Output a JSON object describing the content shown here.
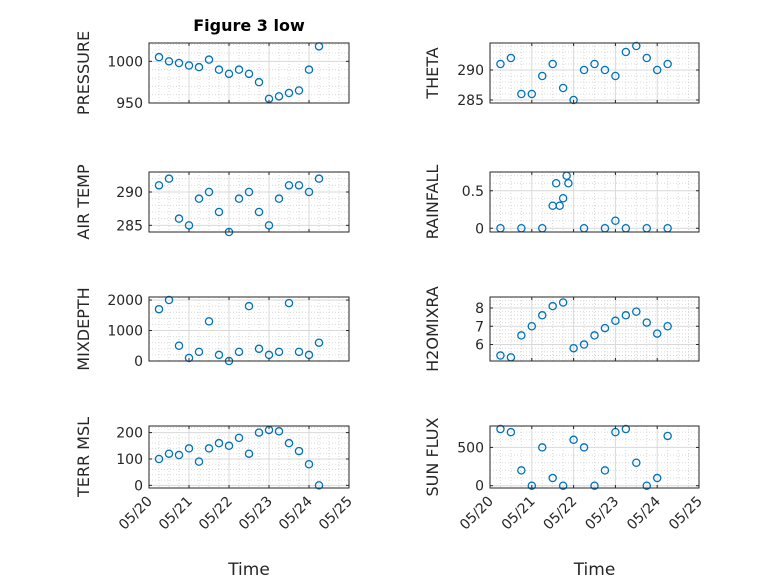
{
  "figure": {
    "title": "Figure 3 low",
    "xlabel": "Time",
    "date_ticks": [
      "05/20",
      "05/21",
      "05/22",
      "05/23",
      "05/24",
      "05/25"
    ],
    "marker_color": "#0072BD",
    "grid_color": "#d9d9d9"
  },
  "chart_data": [
    {
      "type": "scatter",
      "ylabel": "PRESSURE",
      "title": "Figure 3 low",
      "ylim": [
        950,
        1022
      ],
      "yticks": [
        950,
        1000
      ],
      "x": [
        "05/20 06:00",
        "05/20 12:00",
        "05/20 18:00",
        "05/21 00:00",
        "05/21 06:00",
        "05/21 12:00",
        "05/21 18:00",
        "05/22 00:00",
        "05/22 06:00",
        "05/22 12:00",
        "05/22 18:00",
        "05/23 00:00",
        "05/23 06:00",
        "05/23 12:00",
        "05/23 18:00",
        "05/24 00:00",
        "05/24 06:00"
      ],
      "y": [
        1005,
        1000,
        998,
        995,
        993,
        1002,
        990,
        985,
        990,
        985,
        975,
        955,
        958,
        962,
        965,
        990,
        1018
      ]
    },
    {
      "type": "scatter",
      "ylabel": "THETA",
      "ylim": [
        284.5,
        294.5
      ],
      "yticks": [
        285,
        290
      ],
      "x": [
        "05/20 06:00",
        "05/20 12:00",
        "05/20 18:00",
        "05/21 00:00",
        "05/21 06:00",
        "05/21 12:00",
        "05/21 18:00",
        "05/22 00:00",
        "05/22 06:00",
        "05/22 12:00",
        "05/22 18:00",
        "05/23 00:00",
        "05/23 06:00",
        "05/23 12:00",
        "05/23 18:00",
        "05/24 00:00",
        "05/24 06:00"
      ],
      "y": [
        291,
        292,
        286,
        286,
        289,
        291,
        287,
        285,
        290,
        291,
        290,
        289,
        293,
        294,
        292,
        290,
        291
      ]
    },
    {
      "type": "scatter",
      "ylabel": "AIR_TEMP",
      "ylim": [
        284,
        293
      ],
      "yticks": [
        285,
        290
      ],
      "x": [
        "05/20 06:00",
        "05/20 12:00",
        "05/20 18:00",
        "05/21 00:00",
        "05/21 06:00",
        "05/21 12:00",
        "05/21 18:00",
        "05/22 00:00",
        "05/22 06:00",
        "05/22 12:00",
        "05/22 18:00",
        "05/23 00:00",
        "05/23 06:00",
        "05/23 12:00",
        "05/23 18:00",
        "05/24 00:00",
        "05/24 06:00"
      ],
      "y": [
        291,
        292,
        286,
        285,
        289,
        290,
        287,
        284,
        289,
        290,
        287,
        285,
        289,
        291,
        291,
        290,
        292
      ]
    },
    {
      "type": "scatter",
      "ylabel": "RAINFALL",
      "ylim": [
        -0.05,
        0.75
      ],
      "yticks": [
        0,
        0.5
      ],
      "x": [
        "05/20 06:00",
        "05/20 18:00",
        "05/21 06:00",
        "05/21 12:00",
        "05/21 14:00",
        "05/21 16:00",
        "05/21 18:00",
        "05/21 20:00",
        "05/21 21:00",
        "05/22 06:00",
        "05/22 18:00",
        "05/23 00:00",
        "05/23 06:00",
        "05/23 18:00",
        "05/24 06:00"
      ],
      "y": [
        0,
        0,
        0,
        0.3,
        0.6,
        0.3,
        0.4,
        0.7,
        0.6,
        0,
        0,
        0.1,
        0,
        0,
        0
      ]
    },
    {
      "type": "scatter",
      "ylabel": "MIXDEPTH",
      "ylim": [
        0,
        2100
      ],
      "yticks": [
        0,
        1000,
        2000
      ],
      "x": [
        "05/20 06:00",
        "05/20 12:00",
        "05/20 18:00",
        "05/21 00:00",
        "05/21 06:00",
        "05/21 12:00",
        "05/21 18:00",
        "05/22 00:00",
        "05/22 06:00",
        "05/22 12:00",
        "05/22 18:00",
        "05/23 00:00",
        "05/23 06:00",
        "05/23 12:00",
        "05/23 18:00",
        "05/24 00:00",
        "05/24 06:00"
      ],
      "y": [
        1700,
        2000,
        500,
        100,
        300,
        1300,
        200,
        0,
        300,
        1800,
        400,
        200,
        300,
        1900,
        300,
        200,
        600
      ]
    },
    {
      "type": "scatter",
      "ylabel": "H2OMIXRA",
      "ylim": [
        5.1,
        8.6
      ],
      "yticks": [
        6,
        7,
        8
      ],
      "x": [
        "05/20 06:00",
        "05/20 12:00",
        "05/20 18:00",
        "05/21 00:00",
        "05/21 06:00",
        "05/21 12:00",
        "05/21 18:00",
        "05/22 00:00",
        "05/22 06:00",
        "05/22 12:00",
        "05/22 18:00",
        "05/23 00:00",
        "05/23 06:00",
        "05/23 12:00",
        "05/23 18:00",
        "05/24 00:00",
        "05/24 06:00"
      ],
      "y": [
        5.4,
        5.3,
        6.5,
        7.0,
        7.6,
        8.1,
        8.3,
        5.8,
        6.0,
        6.5,
        6.9,
        7.3,
        7.6,
        7.8,
        7.2,
        6.6,
        7.0
      ]
    },
    {
      "type": "scatter",
      "ylabel": "TERR_MSL",
      "ylim": [
        -10,
        225
      ],
      "yticks": [
        0,
        100,
        200
      ],
      "x": [
        "05/20 06:00",
        "05/20 12:00",
        "05/20 18:00",
        "05/21 00:00",
        "05/21 06:00",
        "05/21 12:00",
        "05/21 18:00",
        "05/22 00:00",
        "05/22 06:00",
        "05/22 12:00",
        "05/22 18:00",
        "05/23 00:00",
        "05/23 06:00",
        "05/23 12:00",
        "05/23 18:00",
        "05/24 00:00",
        "05/24 06:00"
      ],
      "y": [
        100,
        120,
        115,
        140,
        90,
        140,
        160,
        150,
        180,
        120,
        200,
        210,
        205,
        160,
        130,
        80,
        0
      ]
    },
    {
      "type": "scatter",
      "ylabel": "SUN_FLUX",
      "ylim": [
        -30,
        780
      ],
      "yticks": [
        0,
        500
      ],
      "x": [
        "05/20 06:00",
        "05/20 12:00",
        "05/20 18:00",
        "05/21 00:00",
        "05/21 06:00",
        "05/21 12:00",
        "05/21 18:00",
        "05/22 00:00",
        "05/22 06:00",
        "05/22 12:00",
        "05/22 18:00",
        "05/23 00:00",
        "05/23 06:00",
        "05/23 12:00",
        "05/23 18:00",
        "05/24 00:00",
        "05/24 06:00"
      ],
      "y": [
        740,
        700,
        200,
        0,
        500,
        100,
        0,
        600,
        500,
        0,
        200,
        700,
        740,
        300,
        0,
        100,
        650
      ]
    }
  ]
}
